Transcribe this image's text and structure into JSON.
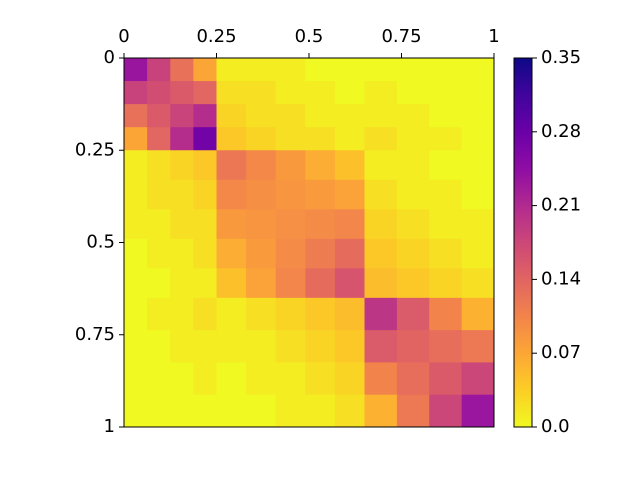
{
  "chart_data": {
    "type": "heatmap",
    "colormap": "plasma_r",
    "edges": [
      0,
      0.0625,
      0.125,
      0.1875,
      0.25,
      0.33,
      0.41,
      0.49,
      0.57,
      0.65,
      0.7375,
      0.825,
      0.9125,
      1
    ],
    "z": [
      [
        0.235,
        0.18,
        0.126,
        0.071,
        0.01,
        0.01,
        0.01,
        0,
        0,
        0,
        0,
        0,
        0
      ],
      [
        0.18,
        0.166,
        0.152,
        0.138,
        0.02,
        0.02,
        0.01,
        0.01,
        0,
        0.01,
        0,
        0,
        0
      ],
      [
        0.126,
        0.152,
        0.179,
        0.206,
        0.03,
        0.02,
        0.02,
        0.01,
        0.01,
        0.01,
        0.01,
        0,
        0
      ],
      [
        0.071,
        0.138,
        0.206,
        0.273,
        0.04,
        0.03,
        0.02,
        0.02,
        0.01,
        0.02,
        0.01,
        0.01,
        0
      ],
      [
        0.01,
        0.02,
        0.03,
        0.04,
        0.119,
        0.101,
        0.083,
        0.064,
        0.046,
        0.01,
        0.01,
        0,
        0
      ],
      [
        0.01,
        0.02,
        0.02,
        0.03,
        0.101,
        0.094,
        0.088,
        0.081,
        0.074,
        0.02,
        0.01,
        0.01,
        0
      ],
      [
        0.01,
        0.01,
        0.02,
        0.02,
        0.083,
        0.088,
        0.093,
        0.098,
        0.103,
        0.03,
        0.02,
        0.01,
        0.01
      ],
      [
        0,
        0.01,
        0.01,
        0.02,
        0.064,
        0.081,
        0.098,
        0.114,
        0.131,
        0.04,
        0.03,
        0.02,
        0.01
      ],
      [
        0,
        0,
        0.01,
        0.01,
        0.046,
        0.074,
        0.103,
        0.131,
        0.159,
        0.05,
        0.04,
        0.03,
        0.02
      ],
      [
        0,
        0.01,
        0.01,
        0.02,
        0.01,
        0.02,
        0.03,
        0.04,
        0.05,
        0.196,
        0.151,
        0.105,
        0.06
      ],
      [
        0,
        0,
        0.01,
        0.01,
        0.01,
        0.01,
        0.02,
        0.03,
        0.04,
        0.151,
        0.14,
        0.129,
        0.118
      ],
      [
        0,
        0,
        0,
        0.01,
        0,
        0.01,
        0.01,
        0.02,
        0.03,
        0.105,
        0.129,
        0.152,
        0.176
      ],
      [
        0,
        0,
        0,
        0,
        0,
        0,
        0.01,
        0.01,
        0.02,
        0.06,
        0.118,
        0.176,
        0.234
      ]
    ],
    "xlim": [
      0,
      1
    ],
    "ylim": [
      1,
      0
    ],
    "xticks": [
      0,
      0.25,
      0.5,
      0.75,
      1
    ],
    "yticks": [
      0,
      0.25,
      0.5,
      0.75,
      1
    ],
    "clim": [
      0,
      0.35
    ],
    "cticks": [
      {
        "value": 0,
        "label": "0.0"
      },
      0.07,
      0.14,
      0.21,
      0.28,
      0.35
    ]
  }
}
